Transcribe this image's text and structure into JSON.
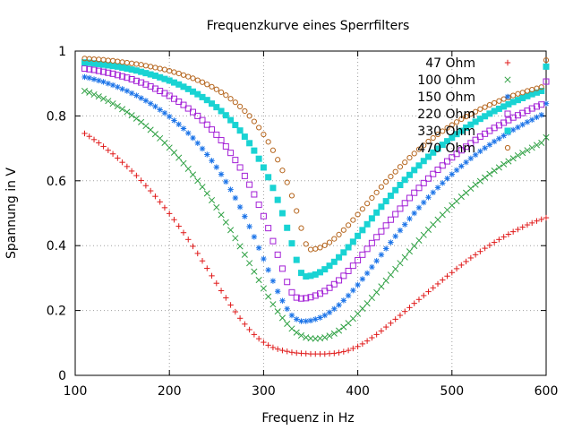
{
  "chart_data": {
    "type": "scatter",
    "title": "Frequenzkurve eines Sperrfilters",
    "xlabel": "Frequenz in Hz",
    "ylabel": "Spannung in V",
    "xlim": [
      100,
      600
    ],
    "ylim": [
      0,
      1
    ],
    "xticks": [
      "100",
      "200",
      "300",
      "400",
      "500",
      "600"
    ],
    "yticks": [
      "0",
      "0.2",
      "0.4",
      "0.6",
      "0.8",
      "1"
    ],
    "grid": true,
    "legend_position": "top-right",
    "x": [
      110,
      115,
      120,
      125,
      130,
      135,
      140,
      145,
      150,
      155,
      160,
      165,
      170,
      175,
      180,
      185,
      190,
      195,
      200,
      205,
      210,
      215,
      220,
      225,
      230,
      235,
      240,
      245,
      250,
      255,
      260,
      265,
      270,
      275,
      280,
      285,
      290,
      295,
      300,
      305,
      310,
      315,
      320,
      325,
      330,
      335,
      340,
      345,
      350,
      355,
      360,
      365,
      370,
      375,
      380,
      385,
      390,
      395,
      400,
      405,
      410,
      415,
      420,
      425,
      430,
      435,
      440,
      445,
      450,
      455,
      460,
      465,
      470,
      475,
      480,
      485,
      490,
      495,
      500,
      505,
      510,
      515,
      520,
      525,
      530,
      535,
      540,
      545,
      550,
      555,
      560,
      565,
      570,
      575,
      580,
      585,
      590,
      595,
      600
    ],
    "series": [
      {
        "name": "47 Ohm",
        "color": "#e01b1b",
        "marker": "plus",
        "values": [
          0.746,
          0.737,
          0.727,
          0.717,
          0.706,
          0.694,
          0.683,
          0.67,
          0.657,
          0.644,
          0.63,
          0.616,
          0.601,
          0.585,
          0.569,
          0.552,
          0.535,
          0.517,
          0.499,
          0.48,
          0.46,
          0.44,
          0.419,
          0.398,
          0.376,
          0.353,
          0.33,
          0.307,
          0.284,
          0.261,
          0.239,
          0.217,
          0.196,
          0.176,
          0.158,
          0.141,
          0.126,
          0.113,
          0.102,
          0.093,
          0.086,
          0.081,
          0.077,
          0.074,
          0.071,
          0.069,
          0.068,
          0.067,
          0.066,
          0.066,
          0.066,
          0.066,
          0.067,
          0.068,
          0.07,
          0.073,
          0.077,
          0.083,
          0.089,
          0.097,
          0.106,
          0.116,
          0.126,
          0.137,
          0.149,
          0.161,
          0.173,
          0.185,
          0.197,
          0.209,
          0.222,
          0.234,
          0.246,
          0.258,
          0.27,
          0.282,
          0.294,
          0.306,
          0.317,
          0.329,
          0.34,
          0.351,
          0.362,
          0.372,
          0.382,
          0.392,
          0.401,
          0.41,
          0.419,
          0.427,
          0.435,
          0.443,
          0.45,
          0.457,
          0.464,
          0.47,
          0.476,
          0.481,
          0.486
        ]
      },
      {
        "name": "100 Ohm",
        "color": "#2ea043",
        "marker": "cross",
        "values": [
          0.877,
          0.872,
          0.866,
          0.86,
          0.853,
          0.846,
          0.838,
          0.83,
          0.821,
          0.812,
          0.802,
          0.792,
          0.781,
          0.769,
          0.757,
          0.744,
          0.731,
          0.717,
          0.702,
          0.687,
          0.671,
          0.654,
          0.637,
          0.619,
          0.6,
          0.581,
          0.561,
          0.54,
          0.518,
          0.495,
          0.472,
          0.448,
          0.423,
          0.398,
          0.372,
          0.346,
          0.32,
          0.294,
          0.268,
          0.243,
          0.219,
          0.197,
          0.177,
          0.159,
          0.144,
          0.132,
          0.123,
          0.117,
          0.114,
          0.113,
          0.114,
          0.117,
          0.122,
          0.129,
          0.138,
          0.149,
          0.161,
          0.175,
          0.19,
          0.206,
          0.222,
          0.239,
          0.256,
          0.274,
          0.292,
          0.31,
          0.328,
          0.346,
          0.364,
          0.382,
          0.399,
          0.416,
          0.433,
          0.449,
          0.465,
          0.48,
          0.495,
          0.51,
          0.524,
          0.537,
          0.551,
          0.563,
          0.576,
          0.588,
          0.599,
          0.61,
          0.621,
          0.631,
          0.641,
          0.651,
          0.66,
          0.669,
          0.678,
          0.686,
          0.694,
          0.702,
          0.71,
          0.717,
          0.734
        ]
      },
      {
        "name": "150 Ohm",
        "color": "#1a73e8",
        "marker": "star",
        "values": [
          0.92,
          0.917,
          0.913,
          0.909,
          0.905,
          0.9,
          0.895,
          0.889,
          0.883,
          0.877,
          0.87,
          0.863,
          0.855,
          0.847,
          0.838,
          0.829,
          0.819,
          0.809,
          0.798,
          0.786,
          0.774,
          0.761,
          0.747,
          0.732,
          0.716,
          0.699,
          0.681,
          0.662,
          0.642,
          0.62,
          0.597,
          0.573,
          0.547,
          0.519,
          0.49,
          0.459,
          0.427,
          0.393,
          0.359,
          0.325,
          0.291,
          0.259,
          0.23,
          0.205,
          0.185,
          0.173,
          0.167,
          0.167,
          0.169,
          0.173,
          0.178,
          0.185,
          0.194,
          0.205,
          0.217,
          0.231,
          0.246,
          0.262,
          0.279,
          0.297,
          0.315,
          0.334,
          0.353,
          0.372,
          0.391,
          0.41,
          0.429,
          0.447,
          0.465,
          0.483,
          0.5,
          0.517,
          0.533,
          0.549,
          0.564,
          0.579,
          0.593,
          0.607,
          0.62,
          0.633,
          0.645,
          0.657,
          0.669,
          0.68,
          0.691,
          0.701,
          0.711,
          0.721,
          0.73,
          0.739,
          0.748,
          0.757,
          0.765,
          0.773,
          0.781,
          0.788,
          0.796,
          0.803,
          0.838
        ]
      },
      {
        "name": "220 Ohm",
        "color": "#a320d6",
        "marker": "square-open",
        "values": [
          0.946,
          0.944,
          0.942,
          0.939,
          0.936,
          0.933,
          0.93,
          0.926,
          0.922,
          0.918,
          0.913,
          0.908,
          0.903,
          0.897,
          0.891,
          0.884,
          0.877,
          0.87,
          0.862,
          0.853,
          0.844,
          0.834,
          0.823,
          0.812,
          0.8,
          0.787,
          0.773,
          0.758,
          0.742,
          0.725,
          0.706,
          0.686,
          0.664,
          0.641,
          0.615,
          0.588,
          0.558,
          0.526,
          0.491,
          0.454,
          0.414,
          0.372,
          0.329,
          0.288,
          0.256,
          0.24,
          0.237,
          0.238,
          0.241,
          0.246,
          0.252,
          0.26,
          0.27,
          0.281,
          0.293,
          0.307,
          0.322,
          0.338,
          0.355,
          0.372,
          0.39,
          0.408,
          0.426,
          0.444,
          0.462,
          0.48,
          0.497,
          0.514,
          0.531,
          0.547,
          0.563,
          0.578,
          0.593,
          0.607,
          0.621,
          0.634,
          0.647,
          0.66,
          0.672,
          0.683,
          0.694,
          0.705,
          0.716,
          0.726,
          0.736,
          0.745,
          0.754,
          0.763,
          0.771,
          0.779,
          0.787,
          0.795,
          0.802,
          0.809,
          0.816,
          0.823,
          0.829,
          0.835,
          0.906
        ]
      },
      {
        "name": "330 Ohm",
        "color": "#19d3d3",
        "marker": "square-filled",
        "values": [
          0.965,
          0.964,
          0.962,
          0.96,
          0.958,
          0.956,
          0.954,
          0.952,
          0.949,
          0.946,
          0.943,
          0.94,
          0.936,
          0.932,
          0.928,
          0.924,
          0.919,
          0.914,
          0.909,
          0.903,
          0.897,
          0.89,
          0.883,
          0.875,
          0.867,
          0.858,
          0.849,
          0.838,
          0.827,
          0.815,
          0.802,
          0.787,
          0.772,
          0.755,
          0.736,
          0.716,
          0.693,
          0.668,
          0.641,
          0.611,
          0.578,
          0.541,
          0.5,
          0.455,
          0.407,
          0.356,
          0.316,
          0.305,
          0.307,
          0.311,
          0.318,
          0.327,
          0.338,
          0.35,
          0.364,
          0.379,
          0.395,
          0.412,
          0.43,
          0.448,
          0.466,
          0.484,
          0.502,
          0.52,
          0.537,
          0.554,
          0.571,
          0.587,
          0.603,
          0.618,
          0.633,
          0.647,
          0.661,
          0.674,
          0.687,
          0.699,
          0.711,
          0.722,
          0.733,
          0.744,
          0.754,
          0.764,
          0.773,
          0.782,
          0.791,
          0.799,
          0.807,
          0.815,
          0.822,
          0.829,
          0.836,
          0.843,
          0.849,
          0.855,
          0.861,
          0.867,
          0.872,
          0.877,
          0.952
        ]
      },
      {
        "name": "470 Ohm",
        "color": "#b5651d",
        "marker": "circle-open",
        "values": [
          0.977,
          0.976,
          0.975,
          0.974,
          0.973,
          0.971,
          0.97,
          0.968,
          0.966,
          0.964,
          0.962,
          0.96,
          0.958,
          0.955,
          0.952,
          0.949,
          0.946,
          0.943,
          0.939,
          0.935,
          0.931,
          0.926,
          0.921,
          0.916,
          0.91,
          0.904,
          0.897,
          0.89,
          0.882,
          0.873,
          0.864,
          0.853,
          0.842,
          0.829,
          0.815,
          0.8,
          0.783,
          0.764,
          0.743,
          0.72,
          0.694,
          0.665,
          0.632,
          0.595,
          0.554,
          0.507,
          0.454,
          0.405,
          0.388,
          0.39,
          0.394,
          0.401,
          0.41,
          0.421,
          0.434,
          0.448,
          0.463,
          0.479,
          0.496,
          0.513,
          0.53,
          0.547,
          0.564,
          0.581,
          0.597,
          0.613,
          0.628,
          0.643,
          0.657,
          0.671,
          0.684,
          0.697,
          0.709,
          0.721,
          0.732,
          0.743,
          0.753,
          0.763,
          0.772,
          0.781,
          0.79,
          0.798,
          0.806,
          0.813,
          0.821,
          0.827,
          0.834,
          0.84,
          0.846,
          0.852,
          0.857,
          0.863,
          0.868,
          0.872,
          0.877,
          0.881,
          0.885,
          0.889,
          0.972
        ]
      }
    ]
  }
}
